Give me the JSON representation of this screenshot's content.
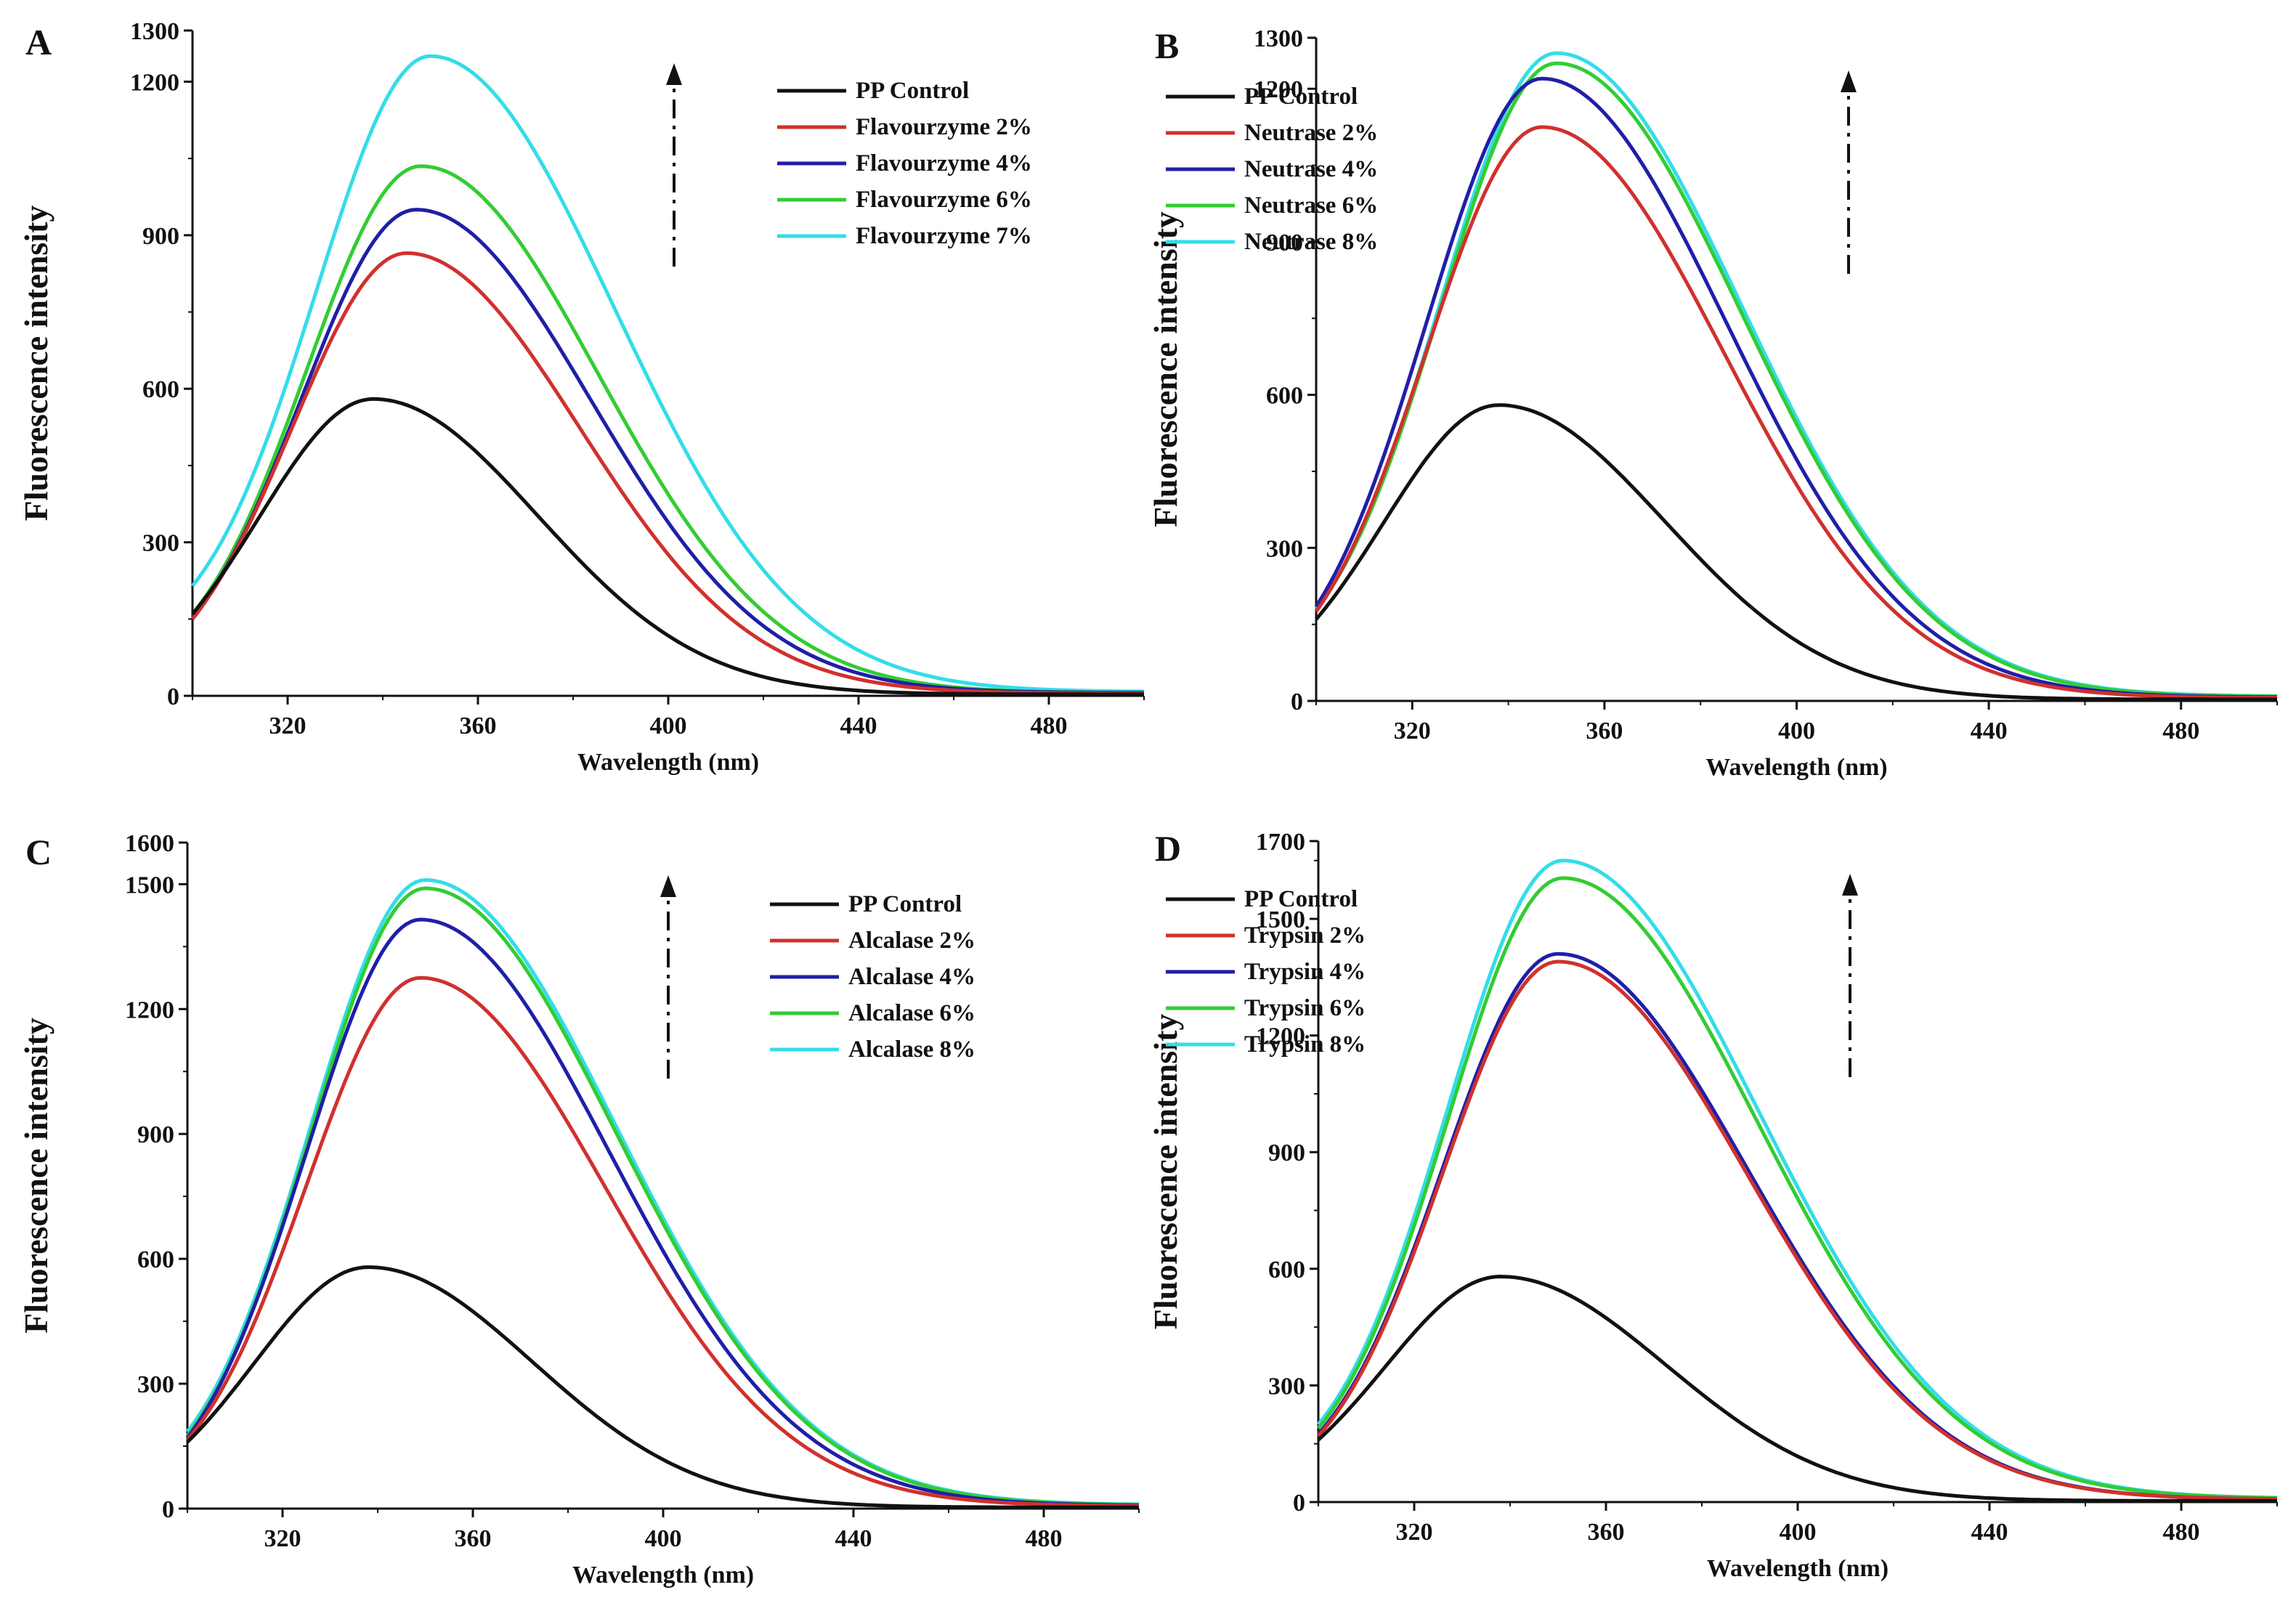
{
  "figure": {
    "panels": [
      "A",
      "B",
      "C",
      "D"
    ]
  },
  "series_colors": {
    "control": "#111111",
    "c1": "#d0312d",
    "c2": "#1f1fa8",
    "c3": "#33cc33",
    "c4": "#33dde8"
  },
  "chart_data": [
    {
      "type": "line",
      "panel": "A",
      "xlabel": "Wavelength (nm)",
      "ylabel": "Fluorescence intensity",
      "xlim": [
        300,
        500
      ],
      "ylim": [
        0,
        1300
      ],
      "xticks": [
        320,
        360,
        400,
        440,
        480
      ],
      "yticks": [
        0,
        300,
        600,
        900,
        1200,
        1300
      ],
      "legend_position": "top-right",
      "arrow": "upward",
      "series": [
        {
          "name": "PP Control",
          "color": "#111111",
          "start": 160,
          "peak_x": 338,
          "peak_y": 580,
          "tail": 3
        },
        {
          "name": "Flavourzyme  2%",
          "color": "#d0312d",
          "start": 150,
          "peak_x": 345,
          "peak_y": 865,
          "tail": 5
        },
        {
          "name": "Flavourzyme  4%",
          "color": "#1f1fa8",
          "start": 155,
          "peak_x": 347,
          "peak_y": 950,
          "tail": 6
        },
        {
          "name": "Flavourzyme  6%",
          "color": "#33cc33",
          "start": 160,
          "peak_x": 348,
          "peak_y": 1035,
          "tail": 6
        },
        {
          "name": "Flavourzyme  7%",
          "color": "#33dde8",
          "start": 215,
          "peak_x": 350,
          "peak_y": 1250,
          "tail": 8
        }
      ]
    },
    {
      "type": "line",
      "panel": "B",
      "xlabel": "Wavelength (nm)",
      "ylabel": "Fluorescence intensity",
      "xlim": [
        300,
        500
      ],
      "ylim": [
        0,
        1300
      ],
      "xticks": [
        320,
        360,
        400,
        440,
        480
      ],
      "yticks": [
        0,
        300,
        600,
        900,
        1200,
        1300
      ],
      "legend_position": "top-right",
      "arrow": "upward",
      "series": [
        {
          "name": "PP Control",
          "color": "#111111",
          "start": 160,
          "peak_x": 338,
          "peak_y": 580,
          "tail": 3
        },
        {
          "name": "Neutrase  2%",
          "color": "#d0312d",
          "start": 175,
          "peak_x": 347,
          "peak_y": 1125,
          "tail": 6
        },
        {
          "name": "Neutrase  4%",
          "color": "#1f1fa8",
          "start": 185,
          "peak_x": 347,
          "peak_y": 1220,
          "tail": 7
        },
        {
          "name": "Neutrase  6%",
          "color": "#33cc33",
          "start": 180,
          "peak_x": 350,
          "peak_y": 1250,
          "tail": 8
        },
        {
          "name": "Neutrase  8%",
          "color": "#33dde8",
          "start": 180,
          "peak_x": 350,
          "peak_y": 1270,
          "tail": 9
        }
      ]
    },
    {
      "type": "line",
      "panel": "C",
      "xlabel": "Wavelength (nm)",
      "ylabel": "Fluorescence intensity",
      "xlim": [
        300,
        500
      ],
      "ylim": [
        0,
        1600
      ],
      "xticks": [
        320,
        360,
        400,
        440,
        480
      ],
      "yticks": [
        0,
        300,
        600,
        900,
        1200,
        1500,
        1600
      ],
      "legend_position": "top-right",
      "arrow": "upward",
      "series": [
        {
          "name": "PP Control",
          "color": "#111111",
          "start": 160,
          "peak_x": 338,
          "peak_y": 580,
          "tail": 3
        },
        {
          "name": "Alcalase  2%",
          "color": "#d0312d",
          "start": 165,
          "peak_x": 349,
          "peak_y": 1275,
          "tail": 6
        },
        {
          "name": "Alcalase  4%",
          "color": "#1f1fa8",
          "start": 170,
          "peak_x": 349,
          "peak_y": 1415,
          "tail": 7
        },
        {
          "name": "Alcalase  6%",
          "color": "#33cc33",
          "start": 175,
          "peak_x": 350,
          "peak_y": 1490,
          "tail": 8
        },
        {
          "name": "Alcalase  8%",
          "color": "#33dde8",
          "start": 185,
          "peak_x": 350,
          "peak_y": 1510,
          "tail": 9
        }
      ]
    },
    {
      "type": "line",
      "panel": "D",
      "xlabel": "Wavelength (nm)",
      "ylabel": "Fluorescence intensity",
      "xlim": [
        300,
        500
      ],
      "ylim": [
        0,
        1700
      ],
      "xticks": [
        320,
        360,
        400,
        440,
        480
      ],
      "yticks": [
        0,
        300,
        600,
        900,
        1200,
        1500,
        1700
      ],
      "legend_position": "top-right",
      "arrow": "upward",
      "series": [
        {
          "name": "PP Control",
          "color": "#111111",
          "start": 160,
          "peak_x": 338,
          "peak_y": 580,
          "tail": 3
        },
        {
          "name": "Trypsin  2%",
          "color": "#d0312d",
          "start": 170,
          "peak_x": 350,
          "peak_y": 1390,
          "tail": 7
        },
        {
          "name": "Trypsin  4%",
          "color": "#1f1fa8",
          "start": 175,
          "peak_x": 350,
          "peak_y": 1410,
          "tail": 7
        },
        {
          "name": "Trypsin  6%",
          "color": "#33cc33",
          "start": 190,
          "peak_x": 351,
          "peak_y": 1605,
          "tail": 9
        },
        {
          "name": "Trypsin  8%",
          "color": "#33dde8",
          "start": 200,
          "peak_x": 351,
          "peak_y": 1650,
          "tail": 9
        }
      ]
    }
  ]
}
